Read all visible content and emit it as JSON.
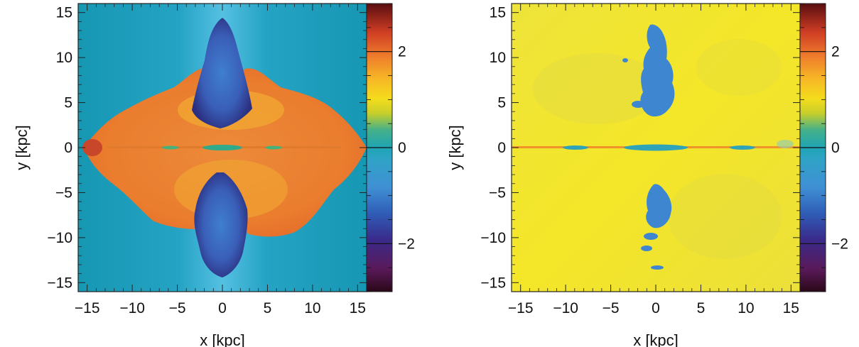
{
  "chart_data": [
    {
      "type": "heatmap",
      "title": "",
      "xlabel": "x   [kpc]",
      "ylabel": "y   [kpc]",
      "xlim": [
        -16,
        16
      ],
      "ylim": [
        -16,
        16
      ],
      "x_ticks": [
        -15,
        -10,
        -5,
        0,
        5,
        10,
        15
      ],
      "y_ticks": [
        -15,
        -10,
        -5,
        0,
        5,
        10,
        15
      ],
      "x_tick_labels": [
        "−15",
        "−10",
        "−5",
        "0",
        "5",
        "10",
        "15"
      ],
      "y_tick_labels": [
        "−15",
        "−10",
        "−5",
        "0",
        "5",
        "10",
        "15"
      ],
      "colorbar": {
        "range": [
          -3,
          3
        ],
        "ticks": [
          -2,
          0,
          2
        ],
        "tick_labels": [
          "−2",
          "0",
          "2"
        ]
      },
      "background_value": -0.3,
      "regions": [
        {
          "name": "cocoon",
          "value": 1.4,
          "extent_x": [
            -16,
            16
          ],
          "extent_y": [
            -10,
            7
          ]
        },
        {
          "name": "upper-jet",
          "value": -1.9,
          "extent_x": [
            -3,
            3
          ],
          "extent_y": [
            0.5,
            14
          ]
        },
        {
          "name": "lower-jet",
          "value": -1.9,
          "extent_x": [
            -3,
            3
          ],
          "extent_y": [
            -14.5,
            -0.5
          ]
        },
        {
          "name": "disk",
          "value": 0.3,
          "extent_x": [
            -14,
            14
          ],
          "extent_y": [
            -0.3,
            0.3
          ]
        }
      ]
    },
    {
      "type": "heatmap",
      "title": "",
      "xlabel": "x   [kpc]",
      "ylabel": "y   [kpc]",
      "xlim": [
        -16,
        16
      ],
      "ylim": [
        -16,
        16
      ],
      "x_ticks": [
        -15,
        -10,
        -5,
        0,
        5,
        10,
        15
      ],
      "y_ticks": [
        -15,
        -10,
        -5,
        0,
        5,
        10,
        15
      ],
      "x_tick_labels": [
        "−15",
        "−10",
        "−5",
        "0",
        "5",
        "10",
        "15"
      ],
      "y_tick_labels": [
        "−15",
        "−10",
        "−5",
        "0",
        "5",
        "10",
        "15"
      ],
      "colorbar": {
        "range": [
          -3,
          3
        ],
        "ticks": [
          -2,
          0,
          2
        ],
        "tick_labels": [
          "−2",
          "0",
          "2"
        ]
      },
      "background_value": 1.0,
      "regions": [
        {
          "name": "upper-jet",
          "value": -0.8,
          "extent_x": [
            -2,
            2.5
          ],
          "extent_y": [
            4,
            14
          ]
        },
        {
          "name": "lower-jet",
          "value": -0.8,
          "extent_x": [
            -2,
            2.5
          ],
          "extent_y": [
            -13.5,
            -3
          ]
        },
        {
          "name": "disk",
          "value": -0.3,
          "extent_x": [
            -16,
            16
          ],
          "extent_y": [
            -0.3,
            0.3
          ]
        }
      ]
    }
  ]
}
